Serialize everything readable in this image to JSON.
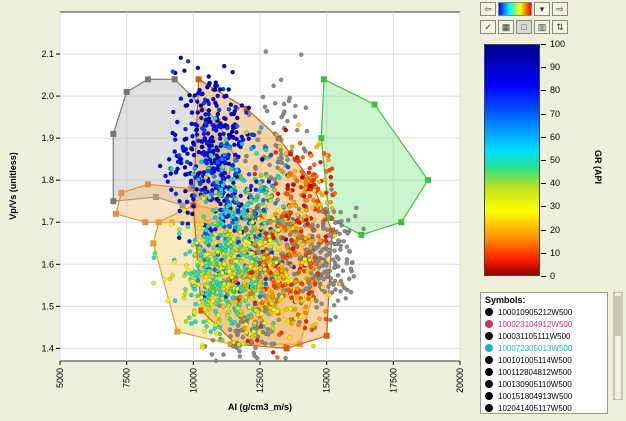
{
  "chart_data": {
    "type": "scatter",
    "xlabel": "AI  (g/cm3_m/s)",
    "ylabel": "Vp/Vs  (unitless)",
    "xlim": [
      5000,
      20000
    ],
    "ylim": [
      1.37,
      2.2
    ],
    "x_ticks": [
      "5000",
      "7500",
      "10000",
      "12500",
      "15000",
      "17500",
      "20000"
    ],
    "x_tick_values": [
      5000,
      7500,
      10000,
      12500,
      15000,
      17500,
      20000
    ],
    "y_ticks": [
      "1.4",
      "1.5",
      "1.6",
      "1.7",
      "1.8",
      "1.9",
      "2.0",
      "2.1"
    ],
    "y_tick_values": [
      1.4,
      1.5,
      1.6,
      1.7,
      1.8,
      1.9,
      2.0,
      2.1
    ],
    "grid": true,
    "polygons": [
      {
        "fill": "#bbbbbb",
        "stroke": "#777777",
        "vertices": [
          [
            7000,
            1.91
          ],
          [
            7500,
            2.01
          ],
          [
            8300,
            2.04
          ],
          [
            9300,
            2.04
          ],
          [
            10900,
            1.94
          ],
          [
            11600,
            1.85
          ],
          [
            11000,
            1.77
          ],
          [
            9600,
            1.74
          ],
          [
            8600,
            1.76
          ],
          [
            7000,
            1.75
          ]
        ]
      },
      {
        "fill": "#f4c080",
        "stroke": "#e09040",
        "vertices": [
          [
            7300,
            1.77
          ],
          [
            8300,
            1.79
          ],
          [
            9900,
            1.78
          ],
          [
            11400,
            1.73
          ],
          [
            10500,
            1.7
          ],
          [
            9200,
            1.7
          ],
          [
            8200,
            1.7
          ],
          [
            7100,
            1.72
          ]
        ]
      },
      {
        "fill": "#f6d070",
        "stroke": "#e0a030",
        "vertices": [
          [
            8700,
            1.7
          ],
          [
            10000,
            1.74
          ],
          [
            11900,
            1.72
          ],
          [
            13800,
            1.69
          ],
          [
            14600,
            1.56
          ],
          [
            14000,
            1.41
          ],
          [
            11400,
            1.41
          ],
          [
            9400,
            1.44
          ],
          [
            8500,
            1.65
          ]
        ]
      },
      {
        "fill": "#f0a040",
        "stroke": "#d06010",
        "vertices": [
          [
            10200,
            2.04
          ],
          [
            12000,
            1.97
          ],
          [
            13200,
            1.9
          ],
          [
            14400,
            1.8
          ],
          [
            15200,
            1.68
          ],
          [
            15000,
            1.43
          ],
          [
            13500,
            1.4
          ],
          [
            11600,
            1.41
          ],
          [
            10300,
            1.49
          ],
          [
            10000,
            1.74
          ]
        ]
      },
      {
        "fill": "#90e890",
        "stroke": "#40c040",
        "vertices": [
          [
            14900,
            2.04
          ],
          [
            16800,
            1.98
          ],
          [
            18800,
            1.8
          ],
          [
            17800,
            1.7
          ],
          [
            16300,
            1.67
          ],
          [
            15100,
            1.71
          ],
          [
            14800,
            1.9
          ]
        ]
      }
    ],
    "point_clusters": [
      {
        "center": [
          10600,
          1.88
        ],
        "spread": [
          700,
          0.09
        ],
        "count": 320,
        "gr_range": [
          72,
          100
        ]
      },
      {
        "center": [
          11900,
          1.7
        ],
        "spread": [
          900,
          0.09
        ],
        "count": 380,
        "gr_range": [
          38,
          80
        ]
      },
      {
        "center": [
          11300,
          1.57
        ],
        "spread": [
          1000,
          0.07
        ],
        "count": 420,
        "gr_range": [
          25,
          55
        ]
      },
      {
        "center": [
          13200,
          1.58
        ],
        "spread": [
          800,
          0.08
        ],
        "count": 300,
        "gr_range": [
          5,
          30
        ]
      },
      {
        "center": [
          14200,
          1.77
        ],
        "spread": [
          600,
          0.07
        ],
        "count": 160,
        "gr_range": [
          2,
          25
        ]
      },
      {
        "center": [
          14600,
          1.62
        ],
        "spread": [
          700,
          0.06
        ],
        "count": 220,
        "gr_range": [
          null,
          null
        ],
        "color": "#8a8a8a"
      },
      {
        "center": [
          13200,
          1.86
        ],
        "spread": [
          600,
          0.09
        ],
        "count": 80,
        "gr_range": [
          null,
          null
        ],
        "color": "#8a8a8a"
      },
      {
        "center": [
          12100,
          1.44
        ],
        "spread": [
          600,
          0.04
        ],
        "count": 70,
        "gr_range": [
          null,
          null
        ],
        "color": "#8a8a8a"
      }
    ],
    "colorbar": {
      "label": "GR  (API",
      "min": 0,
      "max": 100,
      "ticks": [
        "100",
        "90",
        "80",
        "70",
        "60",
        "50",
        "40",
        "30",
        "20",
        "10",
        "0"
      ],
      "tick_values": [
        100,
        90,
        80,
        70,
        60,
        50,
        40,
        30,
        20,
        10,
        0
      ]
    },
    "legend": {
      "title": "Symbols:",
      "items": [
        {
          "label": "100010905212W500",
          "color": "#000000"
        },
        {
          "label": "100023104912W500",
          "color": "#d03060"
        },
        {
          "label": "100031105111W500",
          "color": "#000000"
        },
        {
          "label": "100072305013W500",
          "color": "#20b0c0"
        },
        {
          "label": "100101005114W500",
          "color": "#000000"
        },
        {
          "label": "100112804812W500",
          "color": "#000000"
        },
        {
          "label": "100130905110W500",
          "color": "#000000"
        },
        {
          "label": "100151804913W500",
          "color": "#000000"
        },
        {
          "label": "102041405117W500",
          "color": "#000000"
        }
      ]
    }
  },
  "toolbar": {
    "icons": [
      "arrow-left-icon",
      "color-ramp-icon",
      "dropdown-icon",
      "arrow-right-icon",
      "check-icon",
      "palette-icon",
      "swatch-icon",
      "range-icon",
      "flip-icon"
    ]
  }
}
